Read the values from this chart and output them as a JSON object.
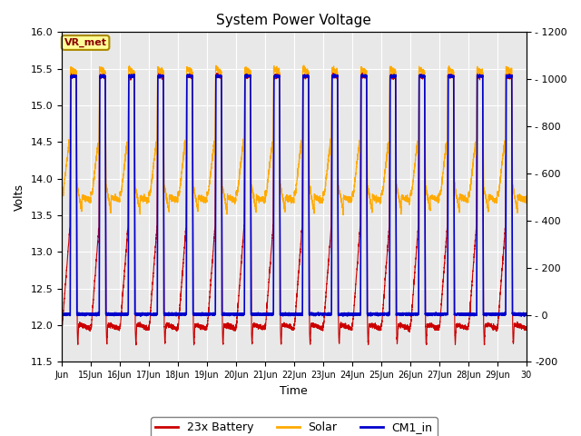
{
  "title": "System Power Voltage",
  "xlabel": "Time",
  "ylabel": "Volts",
  "ylim_left": [
    11.5,
    16.0
  ],
  "ylim_right": [
    -200,
    1200
  ],
  "yticks_left": [
    11.5,
    12.0,
    12.5,
    13.0,
    13.5,
    14.0,
    14.5,
    15.0,
    15.5,
    16.0
  ],
  "yticks_right": [
    -200,
    0,
    200,
    400,
    600,
    800,
    1000,
    1200
  ],
  "xtick_labels": [
    "Jun",
    "15Jun",
    "16Jun",
    "17Jun",
    "18Jun",
    "19Jun",
    "20Jun",
    "21Jun",
    "22Jun",
    "23Jun",
    "24Jun",
    "25Jun",
    "26Jun",
    "27Jun",
    "28Jun",
    "29Jun",
    "30"
  ],
  "battery_color": "#cc0000",
  "solar_color": "#ffaa00",
  "cm1_color": "#0000cc",
  "legend_labels": [
    "23x Battery",
    "Solar",
    "CM1_in"
  ],
  "annotation_text": "VR_met",
  "annotation_bg": "#ffff99",
  "annotation_border": "#aa8800",
  "background_color": "#e8e8e8",
  "grid_color": "#ffffff"
}
